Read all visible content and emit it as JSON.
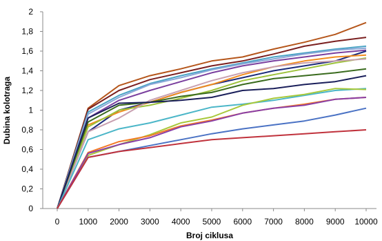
{
  "chart_data": {
    "type": "line",
    "xlabel": "Broj ciklusa",
    "ylabel": "Dubina kolotraga",
    "xlim": [
      0,
      10000
    ],
    "ylim": [
      0,
      2
    ],
    "x": [
      0,
      1000,
      2000,
      3000,
      4000,
      5000,
      6000,
      7000,
      8000,
      9000,
      10000
    ],
    "x_tick_labels": [
      "0",
      "1000",
      "2000",
      "3000",
      "4000",
      "5000",
      "6000",
      "7000",
      "8000",
      "9000",
      "10000"
    ],
    "y_ticks": [
      0,
      0.2,
      0.4,
      0.6,
      0.8,
      1,
      1.2,
      1.4,
      1.6,
      1.8,
      2
    ],
    "y_tick_labels": [
      "0",
      "0,2",
      "0,4",
      "0,6",
      "0,8",
      "1",
      "1,2",
      "1,4",
      "1,6",
      "1,8",
      "2"
    ],
    "grid": false,
    "legend": "none",
    "series": [
      {
        "color": "#b5561b",
        "values": [
          0,
          1.02,
          1.25,
          1.35,
          1.42,
          1.5,
          1.54,
          1.62,
          1.69,
          1.77,
          1.89
        ]
      },
      {
        "color": "#7a1f1f",
        "values": [
          0,
          1.01,
          1.2,
          1.31,
          1.38,
          1.45,
          1.5,
          1.57,
          1.65,
          1.7,
          1.74
        ]
      },
      {
        "color": "#4aa3c4",
        "values": [
          0,
          0.98,
          1.15,
          1.27,
          1.35,
          1.42,
          1.48,
          1.54,
          1.58,
          1.62,
          1.65
        ]
      },
      {
        "color": "#8aa7d8",
        "values": [
          0,
          0.96,
          1.13,
          1.26,
          1.33,
          1.41,
          1.47,
          1.52,
          1.57,
          1.61,
          1.63
        ]
      },
      {
        "color": "#7a3f9e",
        "values": [
          0,
          0.92,
          1.1,
          1.2,
          1.29,
          1.38,
          1.45,
          1.5,
          1.54,
          1.58,
          1.61
        ]
      },
      {
        "color": "#1a2a7a",
        "values": [
          0,
          0.78,
          1.0,
          1.08,
          1.18,
          1.26,
          1.33,
          1.4,
          1.45,
          1.5,
          1.6
        ]
      },
      {
        "color": "#f28c1e",
        "values": [
          0,
          0.85,
          0.98,
          1.08,
          1.18,
          1.26,
          1.36,
          1.44,
          1.5,
          1.54,
          1.56
        ]
      },
      {
        "color": "#9dc23a",
        "values": [
          0,
          0.83,
          1.0,
          1.05,
          1.12,
          1.2,
          1.3,
          1.36,
          1.42,
          1.48,
          1.53
        ]
      },
      {
        "color": "#c8a0b0",
        "values": [
          0,
          0.78,
          0.92,
          1.1,
          1.2,
          1.3,
          1.38,
          1.44,
          1.48,
          1.5,
          1.52
        ]
      },
      {
        "color": "#3a6b1e",
        "values": [
          0,
          0.88,
          1.05,
          1.08,
          1.14,
          1.18,
          1.26,
          1.32,
          1.35,
          1.38,
          1.42
        ]
      },
      {
        "color": "#1a1f5a",
        "values": [
          0,
          0.92,
          1.07,
          1.08,
          1.1,
          1.13,
          1.2,
          1.22,
          1.26,
          1.29,
          1.35
        ]
      },
      {
        "color": "#4bb6c8",
        "values": [
          0,
          0.7,
          0.81,
          0.87,
          0.95,
          1.03,
          1.06,
          1.1,
          1.15,
          1.2,
          1.22
        ]
      },
      {
        "color": "#a8c83a",
        "values": [
          0,
          0.54,
          0.65,
          0.75,
          0.87,
          0.93,
          1.05,
          1.12,
          1.16,
          1.22,
          1.21
        ]
      },
      {
        "color": "#f27a26",
        "values": [
          0,
          0.57,
          0.68,
          0.74,
          0.84,
          0.9,
          0.97,
          1.02,
          1.06,
          1.11,
          1.13
        ]
      },
      {
        "color": "#8a3fa6",
        "values": [
          0,
          0.56,
          0.65,
          0.72,
          0.83,
          0.89,
          0.97,
          1.02,
          1.05,
          1.11,
          1.13
        ]
      },
      {
        "color": "#4a72c4",
        "values": [
          0,
          0.52,
          0.58,
          0.64,
          0.7,
          0.76,
          0.81,
          0.85,
          0.89,
          0.95,
          1.02
        ]
      },
      {
        "color": "#c0323c",
        "values": [
          0,
          0.52,
          0.58,
          0.62,
          0.66,
          0.7,
          0.72,
          0.74,
          0.76,
          0.78,
          0.8
        ]
      }
    ]
  }
}
